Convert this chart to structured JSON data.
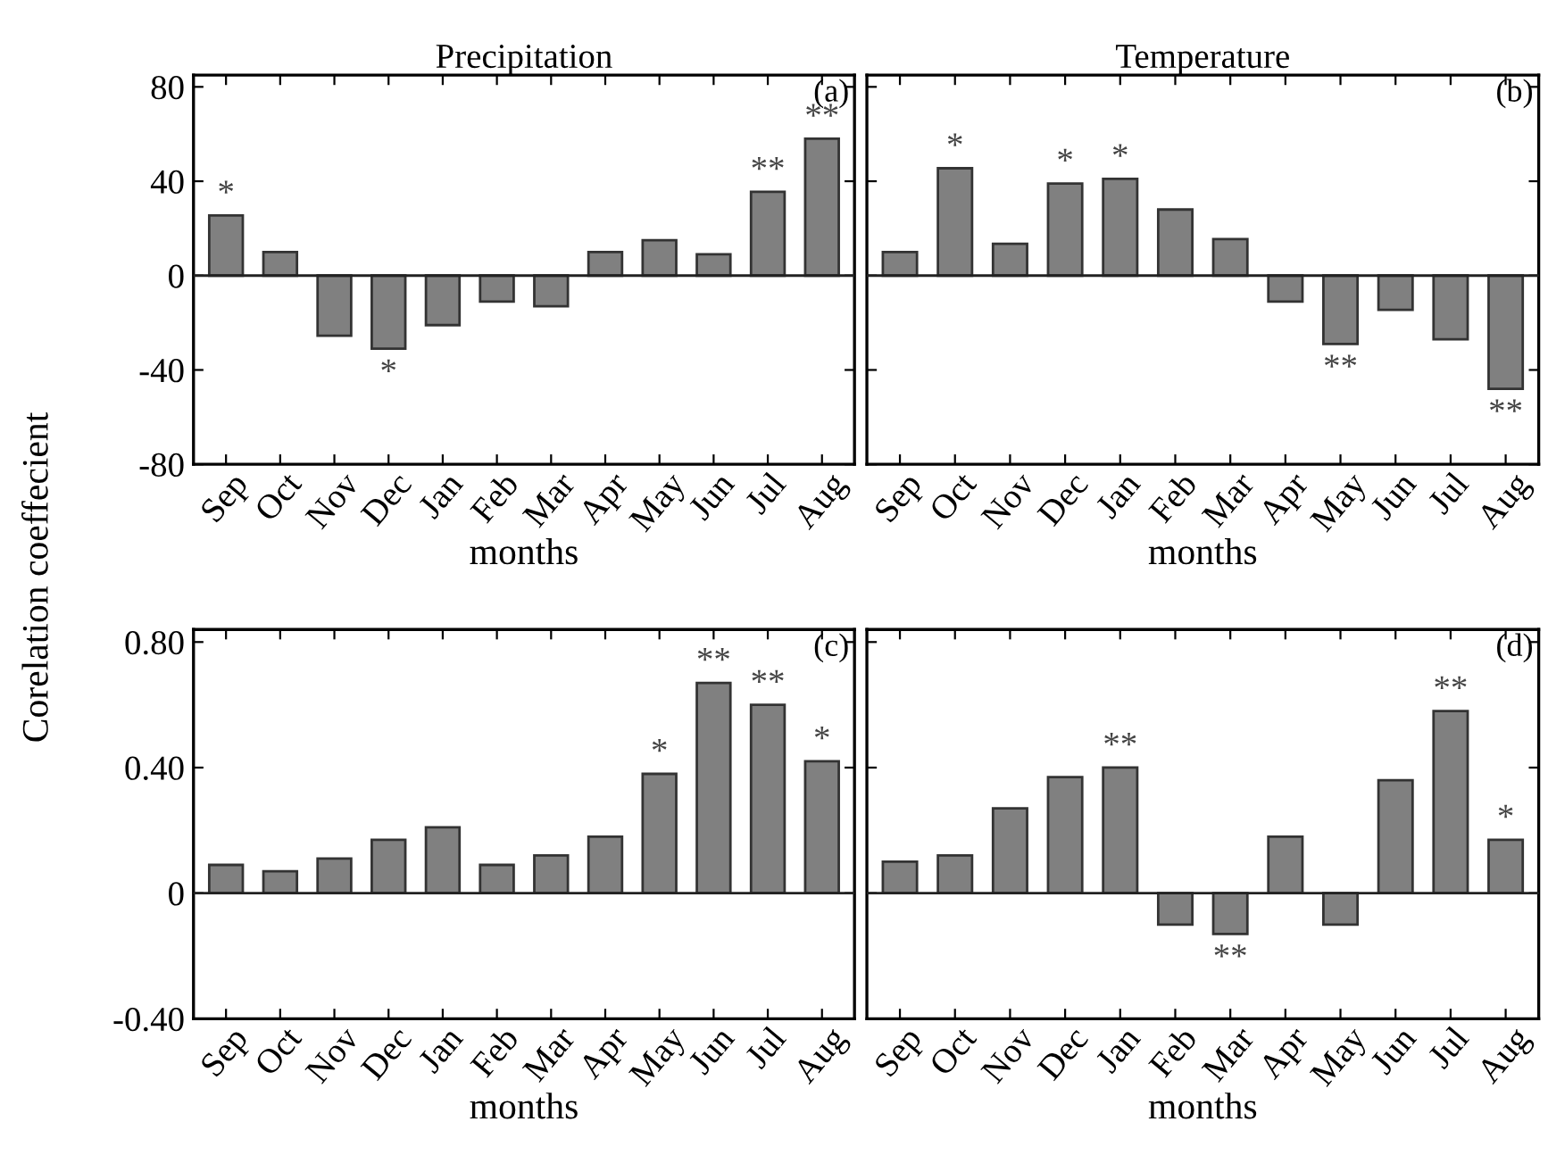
{
  "chart_data": [
    {
      "type": "bar",
      "title": "Precipitation",
      "xlabel": "months",
      "ylabel": "Corelation coeffecient",
      "categories": [
        "Sep",
        "Oct",
        "Nov",
        "Dec",
        "Jan",
        "Feb",
        "Mar",
        "Apr",
        "May",
        "Jun",
        "Jul",
        "Aug"
      ],
      "series": [
        {
          "color": "#808080",
          "values": [
            25.5,
            10,
            -25.5,
            -31,
            -21,
            -11,
            -13,
            10,
            15,
            9,
            35.5,
            58
          ]
        }
      ],
      "ylim": [
        -80,
        85
      ],
      "yticks": [
        -80,
        -40,
        0,
        40,
        80
      ],
      "annotations": [
        "(a)",
        {
          "text": "*",
          "x": "Sep",
          "y": 25.5
        },
        {
          "text": "*",
          "x": "Dec",
          "y": -31
        },
        {
          "text": "**",
          "x": "Jul",
          "y": 35.5
        },
        {
          "text": "**",
          "x": "Aug",
          "y": 58
        }
      ]
    },
    {
      "type": "bar",
      "title": "Temperature",
      "xlabel": "months",
      "categories": [
        "Sep",
        "Oct",
        "Nov",
        "Dec",
        "Jan",
        "Feb",
        "Mar",
        "Apr",
        "May",
        "Jun",
        "Jul",
        "Aug"
      ],
      "series": [
        {
          "color": "#808080",
          "values": [
            10,
            45.5,
            13.5,
            39,
            41,
            28,
            15.5,
            -11,
            -29,
            -14.5,
            -27,
            -48
          ]
        }
      ],
      "ylim": [
        -80,
        85
      ],
      "yticks": [
        {
          "value": -80,
          "label": null
        },
        {
          "value": -40,
          "label": null
        },
        {
          "value": 0,
          "label": null
        },
        {
          "value": 40,
          "label": null
        },
        {
          "value": 80,
          "label": null
        }
      ],
      "tick_labels": "x",
      "annotations": [
        "(b)",
        {
          "text": "*",
          "x": "Oct",
          "y": 45.5
        },
        {
          "text": "*",
          "x": "Dec",
          "y": 39
        },
        {
          "text": "*",
          "x": "Jan",
          "y": 41
        },
        {
          "text": "**",
          "x": "May",
          "y": -29
        },
        {
          "text": "**",
          "x": "Aug",
          "y": -48
        }
      ]
    },
    {
      "type": "bar",
      "xlabel": "months",
      "categories": [
        "Sep",
        "Oct",
        "Nov",
        "Dec",
        "Jan",
        "Feb",
        "Mar",
        "Apr",
        "May",
        "Jun",
        "Jul",
        "Aug"
      ],
      "series": [
        {
          "color": "#808080",
          "values": [
            0.09,
            0.07,
            0.11,
            0.17,
            0.21,
            0.09,
            0.12,
            0.18,
            0.38,
            0.67,
            0.6,
            0.42
          ]
        }
      ],
      "ylim": [
        -0.4,
        0.84
      ],
      "yticks": [
        {
          "value": -0.4,
          "label": "-0.40"
        },
        0,
        {
          "value": 0.4,
          "label": "0.40"
        },
        {
          "value": 0.8,
          "label": "0.80"
        }
      ],
      "annotations": [
        "(c)",
        {
          "text": "*",
          "x": "May",
          "y": 0.38
        },
        {
          "text": "**",
          "x": "Jun",
          "y": 0.67
        },
        {
          "text": "**",
          "x": "Jul",
          "y": 0.6
        },
        {
          "text": "*",
          "x": "Aug",
          "y": 0.42
        }
      ]
    },
    {
      "type": "bar",
      "xlabel": "months",
      "categories": [
        "Sep",
        "Oct",
        "Nov",
        "Dec",
        "Jan",
        "Feb",
        "Mar",
        "Apr",
        "May",
        "Jun",
        "Jul",
        "Aug"
      ],
      "series": [
        {
          "color": "#808080",
          "values": [
            0.1,
            0.12,
            0.27,
            0.37,
            0.4,
            -0.1,
            -0.13,
            0.18,
            -0.1,
            0.36,
            0.58,
            0.17
          ]
        }
      ],
      "ylim": [
        -0.4,
        0.84
      ],
      "yticks": [
        {
          "value": -0.4,
          "label": null
        },
        {
          "value": 0,
          "label": null
        },
        {
          "value": 0.4,
          "label": null
        },
        {
          "value": 0.8,
          "label": null
        }
      ],
      "tick_labels": "x",
      "annotations": [
        "(d)",
        {
          "text": "**",
          "x": "Jan",
          "y": 0.4
        },
        {
          "text": "**",
          "x": "Mar",
          "y": -0.13
        },
        {
          "text": "**",
          "x": "Jul",
          "y": 0.58
        },
        {
          "text": "*",
          "x": "Aug",
          "y": 0.17
        }
      ]
    }
  ]
}
